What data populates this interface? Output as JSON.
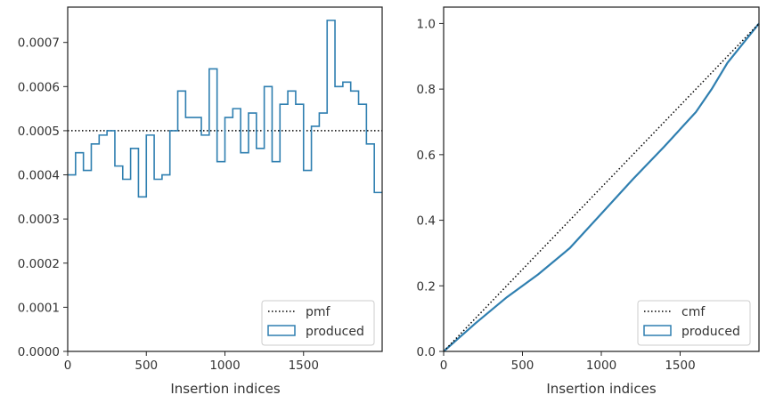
{
  "chart_data": [
    {
      "type": "step",
      "xlabel": "Insertion indices",
      "ylabel": "",
      "xlim": [
        0,
        2000
      ],
      "ylim": [
        0,
        0.00078
      ],
      "xticks": [
        0,
        500,
        1000,
        1500
      ],
      "xtick_labels": [
        "0",
        "500",
        "1000",
        "1500"
      ],
      "yticks": [
        0,
        0.0001,
        0.0002,
        0.0003,
        0.0004,
        0.0005,
        0.0006,
        0.0007
      ],
      "ytick_labels": [
        "0.0000",
        "0.0001",
        "0.0002",
        "0.0003",
        "0.0004",
        "0.0005",
        "0.0006",
        "0.0007"
      ],
      "bin_width": 50,
      "series": [
        {
          "name": "pmf",
          "style": "dotted",
          "color": "#000000",
          "x": [
            0,
            2000
          ],
          "y": [
            0.0005,
            0.0005
          ]
        },
        {
          "name": "produced",
          "style": "step",
          "color": "#2f7fb0",
          "bin_edges_start": 0,
          "values": [
            0.0004,
            0.00045,
            0.00041,
            0.00047,
            0.00049,
            0.0005,
            0.00042,
            0.00039,
            0.00046,
            0.00035,
            0.00049,
            0.00039,
            0.0004,
            0.0005,
            0.00059,
            0.00053,
            0.00053,
            0.00049,
            0.00064,
            0.00043,
            0.00053,
            0.00055,
            0.00045,
            0.00054,
            0.00046,
            0.0006,
            0.00043,
            0.00056,
            0.00059,
            0.00056,
            0.00041,
            0.00051,
            0.00054,
            0.00075,
            0.0006,
            0.00061,
            0.00059,
            0.00056,
            0.00047,
            0.00036
          ]
        }
      ],
      "legend_position": "lower right"
    },
    {
      "type": "line",
      "xlabel": "Insertion indices",
      "ylabel": "",
      "xlim": [
        0,
        2000
      ],
      "ylim": [
        0,
        1.05
      ],
      "xticks": [
        0,
        500,
        1000,
        1500
      ],
      "xtick_labels": [
        "0",
        "500",
        "1000",
        "1500"
      ],
      "yticks": [
        0,
        0.2,
        0.4,
        0.6,
        0.8,
        1.0
      ],
      "ytick_labels": [
        "0.0",
        "0.2",
        "0.4",
        "0.6",
        "0.8",
        "1.0"
      ],
      "series": [
        {
          "name": "cmf",
          "style": "dotted",
          "color": "#000000",
          "x": [
            0,
            2000
          ],
          "y": [
            0,
            1.0
          ]
        },
        {
          "name": "produced",
          "style": "solid",
          "color": "#2f7fb0",
          "x": [
            0,
            200,
            400,
            600,
            800,
            1000,
            1200,
            1400,
            1600,
            1700,
            1800,
            1900,
            2000
          ],
          "y": [
            0,
            0.085,
            0.165,
            0.235,
            0.315,
            0.42,
            0.525,
            0.625,
            0.73,
            0.8,
            0.88,
            0.94,
            1.0
          ]
        }
      ],
      "legend_position": "lower right"
    }
  ]
}
